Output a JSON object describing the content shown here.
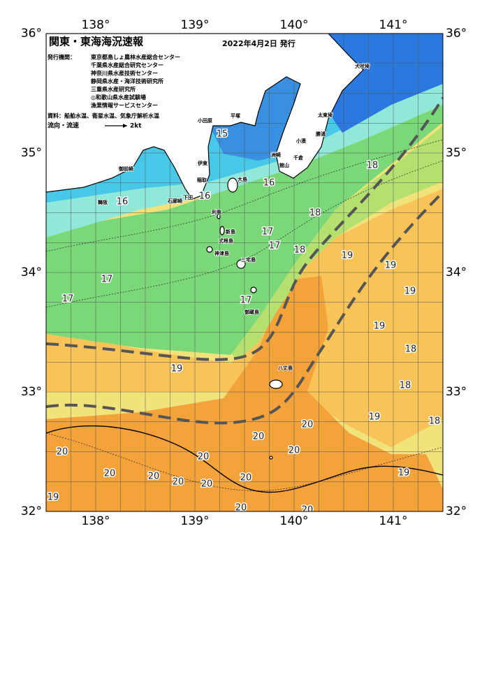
{
  "title": "関東・東海海況速報",
  "issue_date": "2022年4月2日 発行",
  "issuer_label": "発行機関：",
  "issuers": [
    "東京都島しょ農林水産総合センター",
    "千葉県水産総合研究センター",
    "神奈川県水産技術センター",
    "静岡県水産・海洋技術研究所",
    "三重県水産研究所",
    "◎和歌山県水産試験場",
    "漁業情報サービスセンター"
  ],
  "source": "資料：船舶水温、衛星水温、気象庁解析水温",
  "current_legend": {
    "label": "流向・流速",
    "speed": "2kt"
  },
  "longitude_labels": [
    "138°",
    "139°",
    "140°",
    "141°"
  ],
  "latitude_labels": [
    "32°",
    "33°",
    "34°",
    "35°",
    "36°"
  ],
  "temperature_labels": [
    15,
    16,
    16,
    16,
    18,
    18,
    17,
    17,
    18,
    19,
    19,
    19,
    17,
    17,
    17,
    19,
    18,
    19,
    18,
    19,
    18,
    20,
    20,
    20,
    20,
    20,
    20,
    20,
    20,
    20,
    20,
    19,
    19,
    20,
    20
  ],
  "place_names": [
    "犬吠埼",
    "太東埼",
    "勝浦",
    "小湊",
    "館山",
    "洲崎",
    "千倉",
    "小田原",
    "平塚",
    "伊東",
    "稲取",
    "下田",
    "石廊崎",
    "御前崎",
    "舞阪",
    "大島",
    "利島",
    "新島",
    "式根島",
    "神津島",
    "三宅島",
    "御蔵島",
    "八丈島"
  ]
}
